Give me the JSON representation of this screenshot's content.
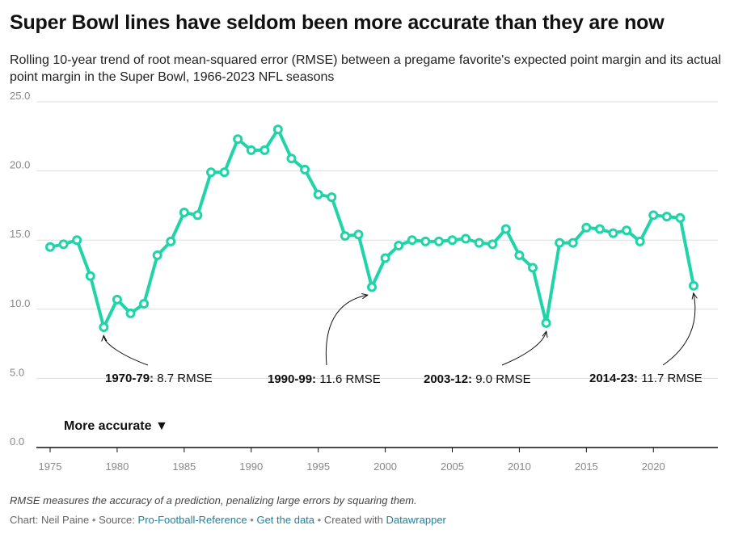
{
  "title": "Super Bowl lines have seldom been more accurate than they are now",
  "subtitle": "Rolling 10-year trend of root mean-squared error (RMSE) between a pregame favorite's expected point margin and its actual point margin in the Super Bowl, 1966-2023 NFL seasons",
  "footnote": "RMSE measures the accuracy of a prediction, penalizing large errors by squaring them.",
  "credits": {
    "chart_prefix": "Chart: Neil Paine",
    "source_prefix": "Source:",
    "source_link": "Pro-Football-Reference",
    "data_link": "Get the data",
    "created_prefix": "Created with",
    "tool_link": "Datawrapper",
    "separator": "•"
  },
  "colors": {
    "line": "#1fd4a8",
    "grid": "#dddddd",
    "axis": "#111111",
    "tick": "#888888",
    "link": "#1d81a2"
  },
  "chart_data": {
    "type": "line",
    "title": "Super Bowl lines have seldom been more accurate than they are now",
    "xlabel": "",
    "ylabel": "",
    "xlim": [
      1975,
      2023
    ],
    "ylim": [
      0,
      25
    ],
    "x_ticks": [
      1975,
      1980,
      1985,
      1990,
      1995,
      2000,
      2005,
      2010,
      2015,
      2020
    ],
    "y_ticks": [
      0,
      5,
      10,
      15,
      20,
      25
    ],
    "y_tick_labels": [
      "0.0",
      "5.0",
      "10.0",
      "15.0",
      "20.0",
      "25.0"
    ],
    "grid": true,
    "marker": "open-circle",
    "series": [
      {
        "x": [
          1975,
          1976,
          1977,
          1978,
          1979,
          1980,
          1981,
          1982,
          1983,
          1984,
          1985,
          1986,
          1987,
          1988,
          1989,
          1990,
          1991,
          1992,
          1993,
          1994,
          1995,
          1996,
          1997,
          1998,
          1999,
          2000,
          2001,
          2002,
          2003,
          2004,
          2005,
          2006,
          2007,
          2008,
          2009,
          2010,
          2011,
          2012,
          2013,
          2014,
          2015,
          2016,
          2017,
          2018,
          2019,
          2020,
          2021,
          2022,
          2023
        ],
        "values": [
          14.5,
          14.7,
          15.0,
          12.4,
          8.7,
          10.7,
          9.7,
          10.4,
          13.9,
          14.9,
          17.0,
          16.8,
          19.9,
          19.9,
          22.3,
          21.5,
          21.5,
          23.0,
          20.9,
          20.1,
          18.3,
          18.1,
          15.3,
          15.4,
          11.6,
          13.7,
          14.6,
          15.0,
          14.9,
          14.9,
          15.0,
          15.1,
          14.8,
          14.7,
          15.8,
          13.9,
          13.0,
          9.0,
          14.8,
          14.8,
          15.9,
          15.8,
          15.5,
          15.7,
          14.9,
          16.8,
          16.7,
          16.6,
          11.7
        ]
      }
    ],
    "annotations": [
      {
        "period": "1970-79:",
        "value": "8.7 RMSE",
        "x": 1979,
        "y": 8.7
      },
      {
        "period": "1990-99:",
        "value": "11.6 RMSE",
        "x": 1999,
        "y": 11.6
      },
      {
        "period": "2003-12:",
        "value": "9.0 RMSE",
        "x": 2012,
        "y": 9.0
      },
      {
        "period": "2014-23:",
        "value": "11.7 RMSE",
        "x": 2023,
        "y": 11.7
      }
    ],
    "direction_note": "More accurate ▼"
  }
}
